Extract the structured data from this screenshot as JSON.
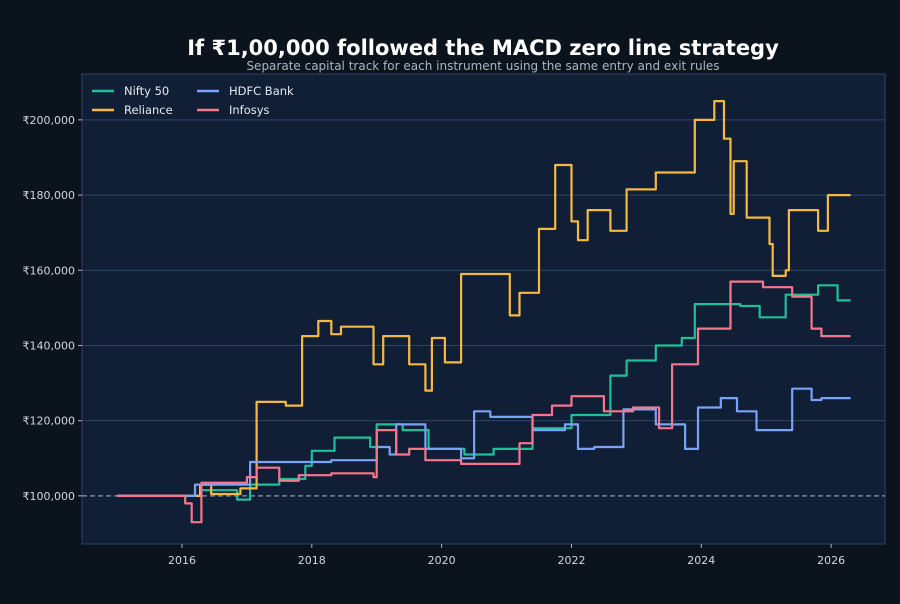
{
  "chart_data": {
    "type": "line",
    "title": "If ₹1,00,000 followed the MACD zero line strategy",
    "subtitle": "Separate capital track for each instrument using the same entry and exit rules",
    "xlabel": "",
    "ylabel": "",
    "xlim": [
      2014.46,
      2026.83
    ],
    "ylim": [
      87200,
      212200
    ],
    "x_ticks": [
      2016,
      2018,
      2020,
      2022,
      2024,
      2026
    ],
    "x_tick_labels": [
      "2016",
      "2018",
      "2020",
      "2022",
      "2024",
      "2026"
    ],
    "y_ticks": [
      100000,
      120000,
      140000,
      160000,
      180000,
      200000
    ],
    "y_tick_labels": [
      "₹100,000",
      "₹120,000",
      "₹140,000",
      "₹160,000",
      "₹180,000",
      "₹200,000"
    ],
    "grid": "horizontal",
    "baseline": 100000,
    "legend_position": "top-left",
    "background_color": "#0b131d",
    "plot_color": "#111f36",
    "series": [
      {
        "name": "Nifty 50",
        "color": "#1fbf9a",
        "x": [
          2015.0,
          2016.3,
          2016.85,
          2017.05,
          2017.5,
          2017.9,
          2018.0,
          2018.35,
          2018.9,
          2019.0,
          2019.4,
          2019.8,
          2020.35,
          2020.8,
          2021.4,
          2022.0,
          2022.6,
          2022.85,
          2023.3,
          2023.7,
          2023.9,
          2024.6,
          2024.9,
          2025.3,
          2025.8,
          2026.1,
          2026.3
        ],
        "y": [
          100000,
          101500,
          99000,
          103000,
          104500,
          108000,
          112000,
          115500,
          113000,
          119000,
          117500,
          112500,
          111000,
          112500,
          118000,
          121500,
          132000,
          136000,
          140000,
          142000,
          151000,
          150500,
          147500,
          153500,
          156000,
          152000,
          152000
        ]
      },
      {
        "name": "Reliance",
        "color": "#f5b942",
        "x": [
          2015.0,
          2016.28,
          2016.45,
          2016.9,
          2017.15,
          2017.6,
          2017.85,
          2018.1,
          2018.3,
          2018.45,
          2018.95,
          2019.1,
          2019.5,
          2019.75,
          2019.85,
          2020.05,
          2020.3,
          2021.05,
          2021.2,
          2021.5,
          2021.75,
          2022.0,
          2022.1,
          2022.25,
          2022.6,
          2022.85,
          2023.3,
          2023.9,
          2024.2,
          2024.35,
          2024.45,
          2024.5,
          2024.7,
          2025.05,
          2025.1,
          2025.3,
          2025.35,
          2025.8,
          2025.95,
          2026.3
        ],
        "y": [
          100000,
          103000,
          100500,
          102000,
          125000,
          124000,
          142500,
          146500,
          143000,
          145000,
          135000,
          142500,
          135000,
          128000,
          142000,
          135500,
          159000,
          148000,
          154000,
          171000,
          188000,
          173000,
          168000,
          176000,
          170500,
          181500,
          186000,
          200000,
          205000,
          195000,
          175000,
          189000,
          174000,
          167000,
          158500,
          160000,
          176000,
          170500,
          180000,
          180000
        ]
      },
      {
        "name": "HDFC Bank",
        "color": "#7aa2f7",
        "x": [
          2015.0,
          2016.2,
          2017.05,
          2018.3,
          2019.0,
          2019.2,
          2019.3,
          2019.75,
          2020.3,
          2020.5,
          2020.75,
          2021.4,
          2021.9,
          2022.1,
          2022.35,
          2022.8,
          2023.3,
          2023.75,
          2023.95,
          2024.3,
          2024.55,
          2024.85,
          2025.4,
          2025.7,
          2025.85,
          2026.3
        ],
        "y": [
          100000,
          103000,
          109000,
          109500,
          113000,
          111000,
          119000,
          112500,
          110000,
          122500,
          121000,
          117500,
          119000,
          112500,
          113000,
          123000,
          119000,
          112500,
          123500,
          126000,
          122500,
          117500,
          128500,
          125500,
          126000,
          126000
        ]
      },
      {
        "name": "Infosys",
        "color": "#f7768e",
        "x": [
          2015.0,
          2016.05,
          2016.15,
          2016.3,
          2017.0,
          2017.15,
          2017.5,
          2017.8,
          2018.3,
          2018.95,
          2019.0,
          2019.3,
          2019.5,
          2019.75,
          2020.3,
          2021.2,
          2021.4,
          2021.7,
          2022.0,
          2022.5,
          2022.95,
          2023.35,
          2023.55,
          2023.95,
          2024.45,
          2024.95,
          2025.4,
          2025.7,
          2025.85,
          2026.3
        ],
        "y": [
          100000,
          98000,
          93000,
          103500,
          105000,
          107500,
          104000,
          105500,
          106000,
          105000,
          117500,
          111000,
          112500,
          109500,
          108500,
          114000,
          121500,
          124000,
          126500,
          122500,
          123500,
          118000,
          135000,
          144500,
          157000,
          155500,
          153000,
          144500,
          142500,
          142500
        ]
      }
    ]
  }
}
